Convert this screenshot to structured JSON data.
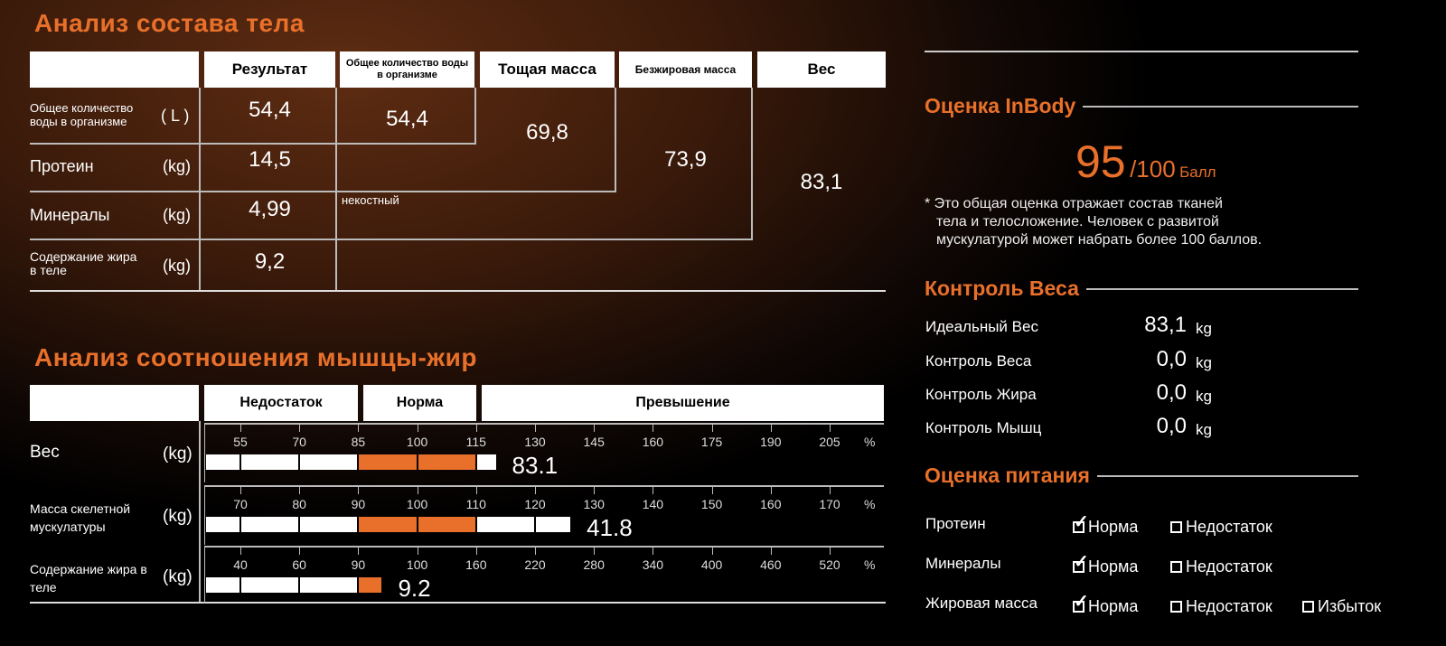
{
  "body_composition": {
    "title": "Анализ состава тела",
    "headers": [
      "Результат",
      "Общее количество воды в организме",
      "Тощая масса",
      "Безжировая масса",
      "Вес"
    ],
    "rows": [
      {
        "label": "Общее количество воды в организме",
        "unit": "( L )",
        "value": "54,4"
      },
      {
        "label": "Протеин",
        "unit": "(kg)",
        "value": "14,5"
      },
      {
        "label": "Минералы",
        "unit": "(kg)",
        "value": "4,99"
      },
      {
        "label": "Содержание жира в теле",
        "unit": "(kg)",
        "value": "9,2"
      }
    ],
    "total_water": "54,4",
    "lean_mass": "69,8",
    "fat_free_mass": "73,9",
    "weight": "83,1",
    "non_bone_note": "некостный"
  },
  "muscle_fat": {
    "title": "Анализ соотношения мышцы-жир",
    "headers": [
      "Недостаток",
      "Норма",
      "Превышение"
    ],
    "percent_sign": "%",
    "rows": [
      {
        "label": "Вес",
        "unit": "(kg)",
        "ticks": [
          "55",
          "70",
          "85",
          "100",
          "115",
          "130",
          "145",
          "160",
          "175",
          "190",
          "205"
        ],
        "value": "83.1",
        "bar_percent": 120
      },
      {
        "label": "Масса скелетной мускулатуры",
        "unit": "(kg)",
        "ticks": [
          "70",
          "80",
          "90",
          "100",
          "110",
          "120",
          "130",
          "140",
          "150",
          "160",
          "170"
        ],
        "value": "41.8",
        "bar_percent": 126
      },
      {
        "label": "Содержание жира в теле",
        "unit": "(kg)",
        "ticks": [
          "40",
          "60",
          "90",
          "100",
          "160",
          "220",
          "280",
          "340",
          "400",
          "460",
          "520"
        ],
        "value": "9.2",
        "bar_percent": 94
      }
    ],
    "colors": {
      "normal": "#e8702a",
      "other": "#ffffff"
    }
  },
  "inbody_score": {
    "title": "Оценка InBody",
    "score": "95",
    "max": "/100",
    "unit": "Балл",
    "note": [
      "* Это общая оценка отражает состав тканей",
      "тела и телосложение. Человек с развитой",
      "мускулатурой может набрать более 100 баллов."
    ]
  },
  "weight_control": {
    "title": "Контроль Веса",
    "rows": [
      {
        "label": "Идеальный Вес",
        "value": "83,1",
        "unit": "kg"
      },
      {
        "label": "Контроль Веса",
        "value": "0,0",
        "unit": "kg"
      },
      {
        "label": "Контроль Жира",
        "value": "0,0",
        "unit": "kg"
      },
      {
        "label": "Контроль Мышц",
        "value": "0,0",
        "unit": "kg"
      }
    ]
  },
  "nutrition": {
    "title": "Оценка питания",
    "rows": [
      {
        "label": "Протеин",
        "options": [
          {
            "label": "Норма",
            "checked": true
          },
          {
            "label": "Недостаток",
            "checked": false
          }
        ]
      },
      {
        "label": "Минералы",
        "options": [
          {
            "label": "Норма",
            "checked": true
          },
          {
            "label": "Недостаток",
            "checked": false
          }
        ]
      },
      {
        "label": "Жировая масса",
        "options": [
          {
            "label": "Норма",
            "checked": true
          },
          {
            "label": "Недостаток",
            "checked": false
          },
          {
            "label": "Избыток",
            "checked": false
          }
        ]
      }
    ]
  },
  "accent_color": "#e8702a"
}
